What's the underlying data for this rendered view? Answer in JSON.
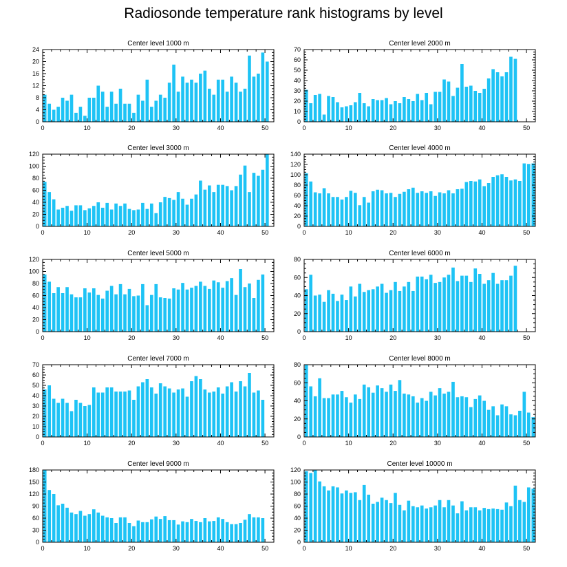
{
  "title": "Radiosonde temperature rank histograms by level",
  "colors": {
    "bar": "#1EC3F5",
    "axis": "#000000"
  },
  "chart_data": [
    {
      "type": "bar",
      "title": "Center level 1000 m",
      "xlim": [
        0,
        52
      ],
      "ylim": [
        0,
        24
      ],
      "xticks": [
        0,
        10,
        20,
        30,
        40,
        50
      ],
      "yticks": [
        0,
        4,
        8,
        12,
        16,
        20,
        24
      ],
      "values": [
        9,
        6,
        4,
        5,
        8,
        7,
        9,
        3,
        5,
        2,
        8,
        8,
        12,
        10,
        5,
        10,
        6,
        11,
        6,
        6,
        3,
        9,
        7,
        14,
        5,
        7,
        9,
        8,
        13,
        19,
        10,
        15,
        13,
        14,
        13,
        16,
        17,
        11,
        9,
        14,
        14,
        10,
        15,
        13,
        10,
        11,
        22,
        15,
        16,
        23,
        20
      ]
    },
    {
      "type": "bar",
      "title": "Center level 2000 m",
      "xlim": [
        0,
        52
      ],
      "ylim": [
        0,
        70
      ],
      "xticks": [
        0,
        10,
        20,
        30,
        40,
        50
      ],
      "yticks": [
        0,
        10,
        20,
        30,
        40,
        50,
        60,
        70
      ],
      "values": [
        31,
        18,
        26,
        27,
        7,
        25,
        24,
        19,
        14,
        15,
        16,
        19,
        28,
        18,
        15,
        22,
        21,
        21,
        23,
        17,
        20,
        18,
        24,
        22,
        20,
        27,
        21,
        28,
        17,
        29,
        29,
        41,
        39,
        25,
        33,
        56,
        34,
        35,
        30,
        28,
        32,
        42,
        51,
        48,
        44,
        48,
        63,
        61
      ]
    },
    {
      "type": "bar",
      "title": "Center level 3000 m",
      "xlim": [
        0,
        52
      ],
      "ylim": [
        0,
        120
      ],
      "xticks": [
        0,
        10,
        20,
        30,
        40,
        50
      ],
      "yticks": [
        0,
        20,
        40,
        60,
        80,
        100,
        120
      ],
      "values": [
        74,
        57,
        45,
        28,
        31,
        34,
        26,
        35,
        35,
        27,
        30,
        34,
        40,
        31,
        39,
        28,
        38,
        34,
        38,
        29,
        27,
        28,
        39,
        29,
        38,
        22,
        40,
        49,
        47,
        44,
        57,
        46,
        36,
        46,
        53,
        76,
        61,
        68,
        57,
        69,
        69,
        67,
        60,
        67,
        86,
        101,
        57,
        89,
        84,
        94,
        122
      ]
    },
    {
      "type": "bar",
      "title": "Center level 4000 m",
      "xlim": [
        0,
        52
      ],
      "ylim": [
        0,
        140
      ],
      "xticks": [
        0,
        10,
        20,
        30,
        40,
        50
      ],
      "yticks": [
        0,
        20,
        40,
        60,
        80,
        100,
        120,
        140
      ],
      "values": [
        103,
        87,
        66,
        64,
        74,
        64,
        57,
        57,
        52,
        57,
        69,
        65,
        41,
        57,
        46,
        68,
        71,
        70,
        64,
        65,
        57,
        63,
        67,
        72,
        75,
        65,
        68,
        65,
        68,
        59,
        66,
        64,
        70,
        64,
        72,
        73,
        86,
        88,
        87,
        91,
        78,
        84,
        96,
        99,
        101,
        96,
        89,
        91,
        88,
        122,
        121,
        122
      ]
    },
    {
      "type": "bar",
      "title": "Center level 5000 m",
      "xlim": [
        0,
        52
      ],
      "ylim": [
        0,
        120
      ],
      "xticks": [
        0,
        10,
        20,
        30,
        40,
        50
      ],
      "yticks": [
        0,
        20,
        40,
        60,
        80,
        100,
        120
      ],
      "values": [
        95,
        83,
        64,
        74,
        64,
        74,
        62,
        57,
        57,
        72,
        65,
        72,
        61,
        55,
        68,
        76,
        62,
        79,
        62,
        71,
        59,
        60,
        79,
        44,
        61,
        79,
        57,
        56,
        55,
        72,
        70,
        81,
        70,
        73,
        76,
        83,
        76,
        71,
        85,
        82,
        73,
        84,
        89,
        61,
        104,
        74,
        80,
        56,
        86,
        95
      ]
    },
    {
      "type": "bar",
      "title": "Center level 6000 m",
      "xlim": [
        0,
        52
      ],
      "ylim": [
        0,
        80
      ],
      "xticks": [
        0,
        10,
        20,
        30,
        40,
        50
      ],
      "yticks": [
        0,
        20,
        40,
        60,
        80
      ],
      "values": [
        47,
        63,
        40,
        41,
        33,
        46,
        42,
        34,
        41,
        35,
        50,
        39,
        53,
        44,
        46,
        47,
        50,
        53,
        43,
        46,
        55,
        45,
        50,
        55,
        45,
        61,
        61,
        58,
        63,
        54,
        55,
        60,
        63,
        71,
        56,
        62,
        62,
        55,
        70,
        64,
        53,
        57,
        65,
        53,
        57,
        57,
        62,
        73
      ]
    },
    {
      "type": "bar",
      "title": "Center level 7000 m",
      "xlim": [
        0,
        52
      ],
      "ylim": [
        0,
        70
      ],
      "xticks": [
        0,
        10,
        20,
        30,
        40,
        50
      ],
      "yticks": [
        0,
        10,
        20,
        30,
        40,
        50,
        60,
        70
      ],
      "values": [
        46,
        50,
        37,
        33,
        37,
        33,
        25,
        36,
        33,
        30,
        31,
        48,
        43,
        43,
        48,
        48,
        44,
        44,
        44,
        45,
        36,
        49,
        53,
        56,
        48,
        42,
        52,
        49,
        47,
        43,
        46,
        47,
        39,
        54,
        59,
        56,
        46,
        43,
        44,
        48,
        42,
        49,
        53,
        44,
        54,
        49,
        62,
        43,
        45,
        36
      ]
    },
    {
      "type": "bar",
      "title": "Center level 8000 m",
      "xlim": [
        0,
        52
      ],
      "ylim": [
        0,
        80
      ],
      "xticks": [
        0,
        10,
        20,
        30,
        40,
        50
      ],
      "yticks": [
        0,
        20,
        40,
        60,
        80
      ],
      "values": [
        80,
        56,
        45,
        65,
        43,
        43,
        47,
        47,
        51,
        44,
        38,
        47,
        42,
        58,
        55,
        49,
        57,
        54,
        50,
        58,
        51,
        63,
        48,
        47,
        45,
        38,
        43,
        40,
        50,
        46,
        54,
        48,
        50,
        61,
        44,
        45,
        44,
        33,
        42,
        46,
        40,
        30,
        34,
        24,
        36,
        34,
        25,
        24,
        29,
        50,
        27,
        22
      ]
    },
    {
      "type": "bar",
      "title": "Center level 9000 m",
      "xlim": [
        0,
        52
      ],
      "ylim": [
        0,
        180
      ],
      "xticks": [
        0,
        10,
        20,
        30,
        40,
        50
      ],
      "yticks": [
        0,
        30,
        60,
        90,
        120,
        150,
        180
      ],
      "values": [
        180,
        130,
        120,
        92,
        96,
        86,
        74,
        70,
        78,
        66,
        70,
        82,
        74,
        66,
        62,
        60,
        48,
        62,
        62,
        48,
        40,
        54,
        50,
        50,
        57,
        64,
        58,
        65,
        55,
        55,
        44,
        52,
        50,
        58,
        53,
        50,
        60,
        52,
        53,
        62,
        58,
        50,
        45,
        45,
        48,
        56,
        70,
        62,
        62,
        60
      ]
    },
    {
      "type": "bar",
      "title": "Center level 10000 m",
      "xlim": [
        0,
        52
      ],
      "ylim": [
        0,
        120
      ],
      "xticks": [
        0,
        10,
        20,
        30,
        40,
        50
      ],
      "yticks": [
        0,
        20,
        40,
        60,
        80,
        100,
        120
      ],
      "values": [
        118,
        115,
        120,
        101,
        93,
        86,
        93,
        91,
        81,
        86,
        82,
        83,
        70,
        95,
        79,
        64,
        67,
        74,
        70,
        65,
        82,
        62,
        53,
        69,
        60,
        58,
        61,
        56,
        58,
        61,
        70,
        58,
        70,
        61,
        48,
        68,
        53,
        58,
        58,
        53,
        57,
        55,
        56,
        55,
        54,
        66,
        60,
        94,
        70,
        67,
        91,
        89
      ]
    }
  ]
}
